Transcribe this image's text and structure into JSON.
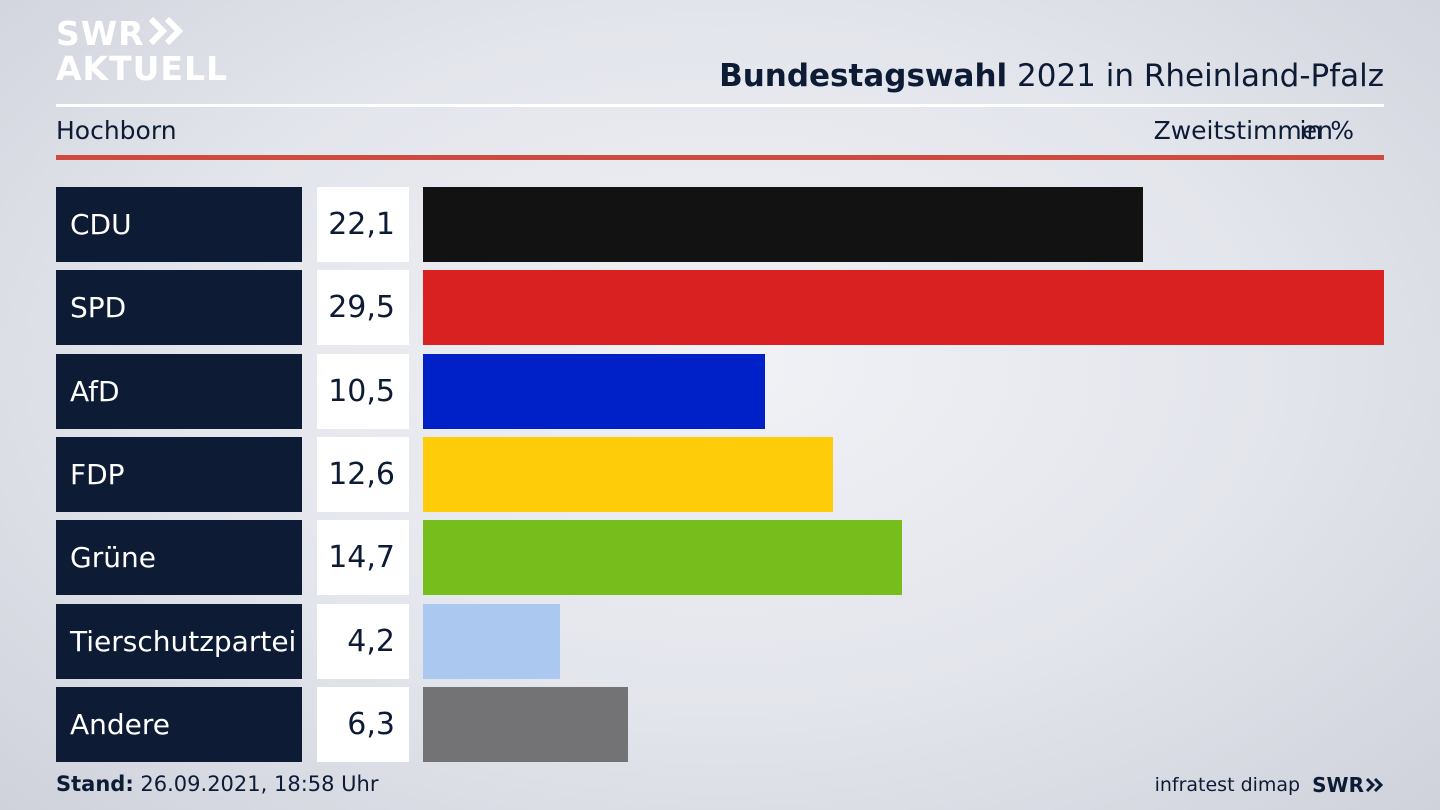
{
  "brand": {
    "line1": "SWR",
    "line2": "AKTUELL"
  },
  "header": {
    "title_bold": "Bundestagswahl",
    "title_rest": " 2021 in Rheinland-Pfalz",
    "location": "Hochborn",
    "vote_type": "Zweitstimmen",
    "unit": "in %"
  },
  "chart_data": {
    "type": "bar",
    "orientation": "horizontal",
    "categories": [
      "CDU",
      "SPD",
      "AfD",
      "FDP",
      "Grüne",
      "Tierschutzpartei",
      "Andere"
    ],
    "values": [
      22.1,
      29.5,
      10.5,
      12.6,
      14.7,
      4.2,
      6.3
    ],
    "value_labels": [
      "22,1",
      "29,5",
      "10,5",
      "12,6",
      "14,7",
      "4,2",
      "6,3"
    ],
    "colors": [
      "#121212",
      "#d82120",
      "#0020c8",
      "#ffcc0a",
      "#77bd1c",
      "#aac8f0",
      "#737376"
    ],
    "xlim": [
      0,
      29.5
    ]
  },
  "footer": {
    "stand_label": "Stand:",
    "stand_value": " 26.09.2021, 18:58 Uhr",
    "source": "infratest dimap",
    "logo": "SWR"
  }
}
